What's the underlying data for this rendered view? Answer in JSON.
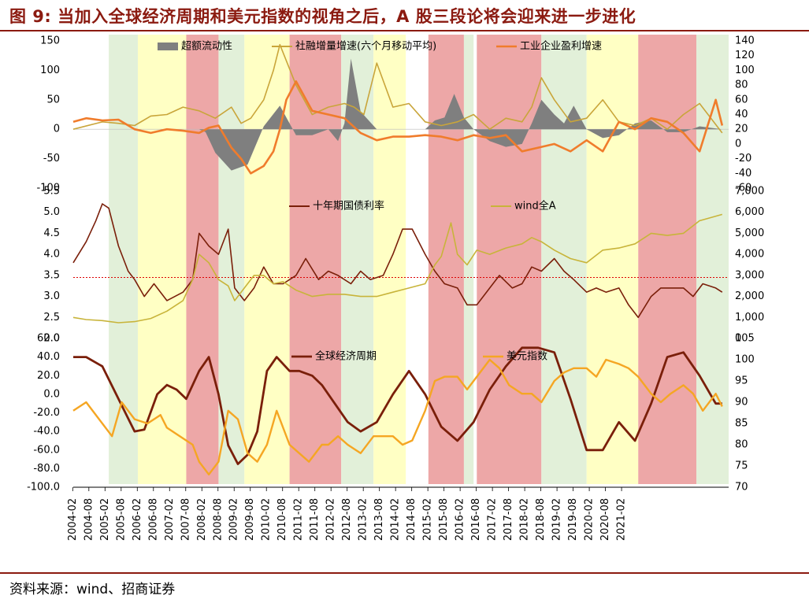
{
  "title": "图 9: 当加入全球经济周期和美元指数的视角之后，A 股三段论将会迎来进一步进化",
  "source": "资料来源：wind、招商证券",
  "colors": {
    "title": "#8b1a10",
    "green": "#e2f0d9",
    "yellow": "#ffffc4",
    "red": "#eda7a7",
    "liquidity": "#7f7f7f",
    "tsf": "#c9a53a",
    "profit": "#f07c2c",
    "bond": "#7a1f0a",
    "windA": "#c8b43a",
    "cycle": "#7a1f0a",
    "dxy": "#f5a623"
  },
  "x_ticks": [
    "2004-02",
    "2004-08",
    "2005-02",
    "2005-08",
    "2006-02",
    "2006-08",
    "2007-02",
    "2007-08",
    "2008-02",
    "2008-08",
    "2009-02",
    "2009-08",
    "2010-02",
    "2010-08",
    "2011-02",
    "2011-08",
    "2012-02",
    "2012-08",
    "2013-02",
    "2013-08",
    "2014-02",
    "2014-08",
    "2015-02",
    "2015-08",
    "2016-02",
    "2016-08",
    "2017-02",
    "2017-08",
    "2018-02",
    "2018-08",
    "2019-02",
    "2019-08",
    "2020-02",
    "2020-08",
    "2021-02"
  ],
  "regimes": [
    {
      "start": 2005.2,
      "end": 2006.1,
      "color": "green"
    },
    {
      "start": 2006.1,
      "end": 2007.6,
      "color": "yellow"
    },
    {
      "start": 2007.6,
      "end": 2008.6,
      "color": "red"
    },
    {
      "start": 2008.6,
      "end": 2009.4,
      "color": "green"
    },
    {
      "start": 2009.4,
      "end": 2010.8,
      "color": "yellow"
    },
    {
      "start": 2010.8,
      "end": 2012.4,
      "color": "red"
    },
    {
      "start": 2012.4,
      "end": 2013.4,
      "color": "green"
    },
    {
      "start": 2013.4,
      "end": 2014.4,
      "color": "yellow"
    },
    {
      "start": 2015.1,
      "end": 2016.2,
      "color": "red"
    },
    {
      "start": 2016.2,
      "end": 2016.5,
      "color": "green"
    },
    {
      "start": 2016.6,
      "end": 2018.6,
      "color": "red"
    },
    {
      "start": 2018.6,
      "end": 2020.0,
      "color": "green"
    },
    {
      "start": 2020.0,
      "end": 2021.6,
      "color": "yellow"
    },
    {
      "start": 2021.6,
      "end": 2023.4,
      "color": "red"
    },
    {
      "start": 2023.4,
      "end": 2024.4,
      "color": "green"
    }
  ],
  "chart_data": [
    {
      "type": "line",
      "title": "",
      "legend": [
        "超额流动性",
        "社融增量增速(六个月移动平均)",
        "工业企业盈利增速"
      ],
      "y_left": {
        "ticks": [
          "150",
          "100",
          "50",
          "0",
          "-50",
          "-100"
        ],
        "ylim": [
          -100,
          150
        ]
      },
      "y_right": {
        "ticks": [
          "140",
          "120",
          "100",
          "80",
          "60",
          "40",
          "20",
          "0",
          "-20",
          "-40",
          "-60"
        ],
        "ylim": [
          -60,
          140
        ]
      },
      "series": [
        {
          "name": "超额流动性",
          "kind": "area",
          "axis": "left",
          "x": [
            2004.1,
            2008.0,
            2008.2,
            2008.5,
            2009.0,
            2009.5,
            2010.0,
            2010.5,
            2011.0,
            2011.5,
            2012.0,
            2012.3,
            2012.5,
            2012.7,
            2013.0,
            2013.5,
            2014.0,
            2014.5,
            2015.0,
            2015.3,
            2015.6,
            2015.9,
            2016.2,
            2016.5,
            2017.0,
            2017.5,
            2018.0,
            2018.3,
            2018.6,
            2019.0,
            2019.3,
            2019.6,
            2020.0,
            2020.5,
            2021.0,
            2021.5,
            2022.0,
            2022.5,
            2023.0,
            2023.5,
            2024.2
          ],
          "values": [
            0,
            0,
            -5,
            -40,
            -70,
            -60,
            5,
            40,
            -10,
            -10,
            0,
            -20,
            10,
            120,
            30,
            0,
            0,
            0,
            0,
            15,
            20,
            60,
            20,
            0,
            -20,
            -30,
            -25,
            10,
            50,
            25,
            10,
            40,
            0,
            -15,
            -10,
            10,
            15,
            -5,
            -5,
            5,
            0
          ]
        },
        {
          "name": "社融增量增速(六个月移动平均)",
          "kind": "line",
          "axis": "right",
          "x": [
            2004.1,
            2005.0,
            2005.5,
            2006.0,
            2006.5,
            2007.0,
            2007.5,
            2008.0,
            2008.5,
            2009.0,
            2009.3,
            2009.6,
            2010.0,
            2010.3,
            2010.5,
            2011.0,
            2011.5,
            2012.0,
            2012.5,
            2012.8,
            2013.1,
            2013.5,
            2014.0,
            2014.5,
            2015.0,
            2015.5,
            2016.0,
            2016.5,
            2017.0,
            2017.5,
            2018.0,
            2018.3,
            2018.6,
            2019.0,
            2019.5,
            2020.0,
            2020.5,
            2021.0,
            2021.5,
            2022.0,
            2022.5,
            2023.0,
            2023.5,
            2024.2
          ],
          "values": [
            20,
            30,
            28,
            25,
            38,
            40,
            50,
            45,
            35,
            50,
            28,
            35,
            60,
            100,
            135,
            80,
            40,
            50,
            55,
            50,
            40,
            110,
            50,
            55,
            30,
            25,
            30,
            40,
            20,
            35,
            30,
            50,
            90,
            60,
            30,
            35,
            60,
            30,
            25,
            35,
            20,
            40,
            55,
            15
          ]
        },
        {
          "name": "工业企业盈利增速",
          "kind": "line",
          "axis": "right",
          "x": [
            2004.1,
            2004.5,
            2005.0,
            2005.5,
            2006.0,
            2006.5,
            2007.0,
            2007.5,
            2008.0,
            2008.3,
            2008.6,
            2009.0,
            2009.3,
            2009.6,
            2010.0,
            2010.3,
            2010.5,
            2010.7,
            2011.0,
            2011.5,
            2012.0,
            2012.5,
            2013.0,
            2013.5,
            2014.0,
            2014.5,
            2015.0,
            2015.5,
            2016.0,
            2016.5,
            2017.0,
            2017.5,
            2018.0,
            2018.5,
            2019.0,
            2019.5,
            2020.0,
            2020.5,
            2021.0,
            2021.5,
            2022.0,
            2022.5,
            2023.0,
            2023.5,
            2024.0,
            2024.2
          ],
          "values": [
            30,
            35,
            32,
            33,
            20,
            15,
            20,
            18,
            15,
            22,
            25,
            -5,
            -20,
            -40,
            -30,
            -10,
            20,
            60,
            85,
            45,
            40,
            35,
            15,
            5,
            10,
            10,
            12,
            10,
            5,
            12,
            8,
            12,
            -10,
            -5,
            0,
            -10,
            5,
            -10,
            30,
            20,
            35,
            30,
            15,
            -10,
            60,
            25
          ]
        }
      ]
    },
    {
      "type": "line",
      "legend": [
        "十年期国债利率",
        "wind全A"
      ],
      "y_left": {
        "ticks": [
          "5.5",
          "5.0",
          "4.5",
          "4.0",
          "3.5",
          "3.0",
          "2.5",
          "2.0"
        ],
        "ylim": [
          2.0,
          5.5
        ]
      },
      "y_right": {
        "ticks": [
          "7,000",
          "6,000",
          "5,000",
          "4,000",
          "3,000",
          "2,000",
          "1,000",
          "0"
        ],
        "ylim": [
          0,
          7000
        ]
      },
      "reference_line": {
        "axis": "left",
        "value": 3.45
      },
      "series": [
        {
          "name": "十年期国债利率",
          "axis": "left",
          "x": [
            2004.1,
            2004.5,
            2004.8,
            2005.0,
            2005.2,
            2005.5,
            2005.8,
            2006.0,
            2006.3,
            2006.6,
            2007.0,
            2007.5,
            2007.8,
            2008.0,
            2008.3,
            2008.6,
            2008.9,
            2009.1,
            2009.4,
            2009.7,
            2010.0,
            2010.3,
            2010.6,
            2011.0,
            2011.3,
            2011.7,
            2012.0,
            2012.3,
            2012.7,
            2013.0,
            2013.3,
            2013.7,
            2014.0,
            2014.3,
            2014.6,
            2015.0,
            2015.3,
            2015.6,
            2016.0,
            2016.3,
            2016.6,
            2017.0,
            2017.3,
            2017.7,
            2018.0,
            2018.3,
            2018.6,
            2019.0,
            2019.3,
            2019.6,
            2020.0,
            2020.3,
            2020.6,
            2021.0,
            2021.3,
            2021.6,
            2022.0,
            2022.3,
            2022.6,
            2023.0,
            2023.3,
            2023.6,
            2024.0,
            2024.2
          ],
          "values": [
            3.8,
            4.3,
            4.8,
            5.2,
            5.1,
            4.2,
            3.6,
            3.4,
            3.0,
            3.3,
            2.9,
            3.1,
            3.4,
            4.5,
            4.2,
            4.0,
            4.6,
            3.2,
            2.9,
            3.2,
            3.7,
            3.3,
            3.3,
            3.5,
            3.9,
            3.4,
            3.6,
            3.5,
            3.3,
            3.6,
            3.4,
            3.5,
            4.0,
            4.6,
            4.6,
            4.0,
            3.6,
            3.3,
            3.2,
            2.8,
            2.8,
            3.2,
            3.5,
            3.2,
            3.3,
            3.7,
            3.6,
            3.9,
            3.6,
            3.4,
            3.1,
            3.2,
            3.1,
            3.2,
            2.8,
            2.5,
            3.0,
            3.2,
            3.2,
            3.2,
            3.0,
            3.3,
            3.2,
            3.1
          ]
        },
        {
          "name": "wind全A",
          "axis": "right",
          "x": [
            2004.1,
            2004.5,
            2005.0,
            2005.5,
            2006.0,
            2006.5,
            2007.0,
            2007.5,
            2007.8,
            2008.0,
            2008.3,
            2008.6,
            2008.9,
            2009.1,
            2009.4,
            2009.7,
            2010.0,
            2010.3,
            2010.6,
            2011.0,
            2011.5,
            2012.0,
            2012.5,
            2013.0,
            2013.5,
            2014.0,
            2014.5,
            2015.0,
            2015.3,
            2015.5,
            2015.8,
            2016.0,
            2016.3,
            2016.6,
            2017.0,
            2017.5,
            2018.0,
            2018.3,
            2018.6,
            2019.0,
            2019.5,
            2020.0,
            2020.5,
            2021.0,
            2021.5,
            2022.0,
            2022.5,
            2023.0,
            2023.5,
            2024.2
          ],
          "values": [
            1000,
            900,
            850,
            750,
            800,
            950,
            1300,
            1800,
            2800,
            4000,
            3600,
            2800,
            2500,
            1800,
            2400,
            3000,
            3000,
            2600,
            2700,
            2300,
            2000,
            2100,
            2100,
            2000,
            2000,
            2200,
            2400,
            2600,
            3500,
            3900,
            5500,
            4000,
            3500,
            4200,
            4000,
            4300,
            4500,
            4800,
            4600,
            4200,
            3800,
            3600,
            4200,
            4300,
            4500,
            5000,
            4900,
            5000,
            5600,
            5900
          ]
        }
      ]
    },
    {
      "type": "line",
      "legend": [
        "全球经济周期",
        "美元指数"
      ],
      "y_left": {
        "ticks": [
          "60.0",
          "40.0",
          "20.0",
          "0.0",
          "-20.0",
          "-40.0",
          "-60.0",
          "-80.0",
          "-100.0"
        ],
        "ylim": [
          -100,
          60
        ]
      },
      "y_right": {
        "ticks": [
          "105",
          "100",
          "95",
          "90",
          "85",
          "80",
          "75",
          "70"
        ],
        "ylim": [
          70,
          105
        ]
      },
      "series": [
        {
          "name": "全球经济周期",
          "axis": "left",
          "x": [
            2004.1,
            2004.5,
            2005.0,
            2005.5,
            2006.0,
            2006.3,
            2006.7,
            2007.0,
            2007.3,
            2007.6,
            2008.0,
            2008.3,
            2008.6,
            2008.9,
            2009.2,
            2009.5,
            2009.8,
            2010.1,
            2010.4,
            2010.8,
            2011.1,
            2011.5,
            2011.8,
            2012.2,
            2012.6,
            2013.0,
            2013.5,
            2014.0,
            2014.5,
            2015.0,
            2015.5,
            2016.0,
            2016.5,
            2017.0,
            2017.5,
            2018.0,
            2018.5,
            2019.0,
            2019.5,
            2020.0,
            2020.5,
            2021.0,
            2021.5,
            2022.0,
            2022.5,
            2023.0,
            2023.5,
            2024.0,
            2024.2
          ],
          "values": [
            40,
            40,
            30,
            -5,
            -40,
            -38,
            0,
            10,
            5,
            -5,
            25,
            40,
            0,
            -55,
            -75,
            -65,
            -40,
            25,
            40,
            25,
            25,
            20,
            10,
            -10,
            -30,
            -40,
            -30,
            0,
            25,
            0,
            -35,
            -50,
            -30,
            5,
            30,
            50,
            50,
            45,
            -5,
            -60,
            -60,
            -30,
            -50,
            -10,
            40,
            45,
            20,
            -10,
            -10
          ]
        },
        {
          "name": "美元指数",
          "axis": "right",
          "x": [
            2004.1,
            2004.5,
            2005.0,
            2005.3,
            2005.6,
            2006.0,
            2006.4,
            2006.8,
            2007.0,
            2007.4,
            2007.8,
            2008.0,
            2008.3,
            2008.6,
            2008.9,
            2009.2,
            2009.5,
            2009.8,
            2010.1,
            2010.4,
            2010.8,
            2011.1,
            2011.4,
            2011.8,
            2012.0,
            2012.3,
            2012.6,
            2013.0,
            2013.4,
            2013.8,
            2014.0,
            2014.3,
            2014.6,
            2015.0,
            2015.3,
            2015.6,
            2016.0,
            2016.3,
            2016.6,
            2017.0,
            2017.3,
            2017.6,
            2018.0,
            2018.3,
            2018.6,
            2019.0,
            2019.3,
            2019.6,
            2020.0,
            2020.3,
            2020.6,
            2021.0,
            2021.3,
            2021.6,
            2022.0,
            2022.3,
            2022.6,
            2023.0,
            2023.3,
            2023.6,
            2024.0,
            2024.2
          ],
          "values": [
            88,
            90,
            85,
            82,
            90,
            86,
            85,
            87,
            84,
            82,
            80,
            76,
            73,
            76,
            88,
            86,
            78,
            76,
            80,
            88,
            80,
            78,
            76,
            80,
            80,
            82,
            80,
            78,
            82,
            82,
            82,
            80,
            81,
            88,
            95,
            96,
            96,
            93,
            96,
            100,
            98,
            94,
            92,
            92,
            90,
            95,
            97,
            98,
            98,
            96,
            100,
            99,
            98,
            96,
            92,
            90,
            92,
            94,
            92,
            88,
            92,
            89
          ]
        }
      ]
    }
  ]
}
